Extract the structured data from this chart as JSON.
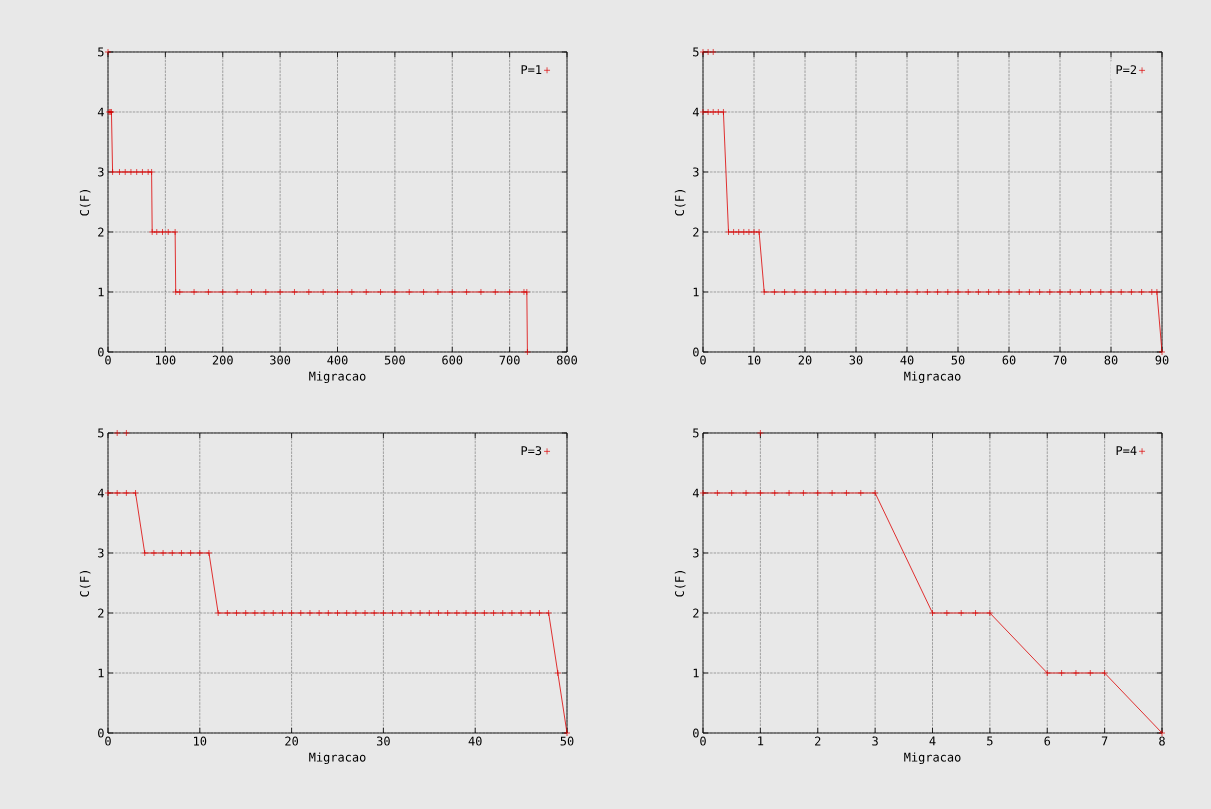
{
  "chart_data": [
    {
      "type": "line",
      "xlabel": "Migracao",
      "ylabel": "C(F)",
      "xlim": [
        0,
        800
      ],
      "ylim": [
        0,
        5
      ],
      "xticks": [
        0,
        100,
        200,
        300,
        400,
        500,
        600,
        700,
        800
      ],
      "yticks": [
        0,
        1,
        2,
        3,
        4,
        5
      ],
      "grid": true,
      "legend": "top right",
      "marker": "cross",
      "line_style": "solid",
      "series": [
        {
          "type": "scatter",
          "color": "#dd0000",
          "x": [
            0
          ],
          "values": [
            5
          ]
        },
        {
          "name": "P=1",
          "color": "#dd0000",
          "x": [
            2,
            4,
            6,
            8,
            20,
            30,
            40,
            50,
            60,
            70,
            76,
            77,
            85,
            95,
            105,
            117,
            118,
            125,
            150,
            175,
            200,
            225,
            250,
            275,
            300,
            325,
            350,
            375,
            400,
            425,
            450,
            475,
            500,
            525,
            550,
            575,
            600,
            625,
            650,
            675,
            700,
            725,
            730,
            731
          ],
          "values": [
            4,
            4,
            4,
            3,
            3,
            3,
            3,
            3,
            3,
            3,
            3,
            2,
            2,
            2,
            2,
            2,
            1,
            1,
            1,
            1,
            1,
            1,
            1,
            1,
            1,
            1,
            1,
            1,
            1,
            1,
            1,
            1,
            1,
            1,
            1,
            1,
            1,
            1,
            1,
            1,
            1,
            1,
            1,
            0
          ]
        }
      ]
    },
    {
      "type": "line",
      "xlabel": "Migracao",
      "ylabel": "C(F)",
      "xlim": [
        0,
        90
      ],
      "ylim": [
        0,
        5
      ],
      "xticks": [
        0,
        10,
        20,
        30,
        40,
        50,
        60,
        70,
        80,
        90
      ],
      "yticks": [
        0,
        1,
        2,
        3,
        4,
        5
      ],
      "grid": true,
      "legend": "top right",
      "marker": "cross",
      "line_style": "solid",
      "series": [
        {
          "type": "scatter",
          "color": "#dd0000",
          "x": [
            0,
            1,
            2
          ],
          "values": [
            5,
            5,
            5
          ]
        },
        {
          "name": "P=2",
          "color": "#dd0000",
          "x": [
            0,
            1,
            2,
            3,
            4,
            5,
            6,
            7,
            8,
            9,
            10,
            11,
            12,
            14,
            16,
            18,
            20,
            22,
            24,
            26,
            28,
            30,
            32,
            34,
            36,
            38,
            40,
            42,
            44,
            46,
            48,
            50,
            52,
            54,
            56,
            58,
            60,
            62,
            64,
            66,
            68,
            70,
            72,
            74,
            76,
            78,
            80,
            82,
            84,
            86,
            88,
            89,
            90
          ],
          "values": [
            4,
            4,
            4,
            4,
            4,
            2,
            2,
            2,
            2,
            2,
            2,
            2,
            1,
            1,
            1,
            1,
            1,
            1,
            1,
            1,
            1,
            1,
            1,
            1,
            1,
            1,
            1,
            1,
            1,
            1,
            1,
            1,
            1,
            1,
            1,
            1,
            1,
            1,
            1,
            1,
            1,
            1,
            1,
            1,
            1,
            1,
            1,
            1,
            1,
            1,
            1,
            1,
            0
          ]
        }
      ]
    },
    {
      "type": "line",
      "xlabel": "Migracao",
      "ylabel": "C(F)",
      "xlim": [
        0,
        50
      ],
      "ylim": [
        0,
        5
      ],
      "xticks": [
        0,
        10,
        20,
        30,
        40,
        50
      ],
      "yticks": [
        0,
        1,
        2,
        3,
        4,
        5
      ],
      "grid": true,
      "legend": "top right",
      "marker": "cross",
      "line_style": "solid",
      "series": [
        {
          "type": "scatter",
          "color": "#dd0000",
          "x": [
            1,
            2
          ],
          "values": [
            5,
            5
          ]
        },
        {
          "name": "P=3",
          "color": "#dd0000",
          "x": [
            0,
            1,
            2,
            3,
            4,
            5,
            6,
            7,
            8,
            9,
            10,
            11,
            12,
            13,
            14,
            15,
            16,
            17,
            18,
            19,
            20,
            21,
            22,
            23,
            24,
            25,
            26,
            27,
            28,
            29,
            30,
            31,
            32,
            33,
            34,
            35,
            36,
            37,
            38,
            39,
            40,
            41,
            42,
            43,
            44,
            45,
            46,
            47,
            48,
            49,
            50
          ],
          "values": [
            4,
            4,
            4,
            4,
            3,
            3,
            3,
            3,
            3,
            3,
            3,
            3,
            2,
            2,
            2,
            2,
            2,
            2,
            2,
            2,
            2,
            2,
            2,
            2,
            2,
            2,
            2,
            2,
            2,
            2,
            2,
            2,
            2,
            2,
            2,
            2,
            2,
            2,
            2,
            2,
            2,
            2,
            2,
            2,
            2,
            2,
            2,
            2,
            2,
            1,
            0
          ]
        }
      ]
    },
    {
      "type": "line",
      "xlabel": "Migracao",
      "ylabel": "C(F)",
      "xlim": [
        0,
        8
      ],
      "ylim": [
        0,
        5
      ],
      "xticks": [
        0,
        1,
        2,
        3,
        4,
        5,
        6,
        7,
        8
      ],
      "yticks": [
        0,
        1,
        2,
        3,
        4,
        5
      ],
      "grid": true,
      "legend": "top right",
      "marker": "cross",
      "line_style": "solid",
      "series": [
        {
          "type": "scatter",
          "color": "#dd0000",
          "x": [
            1
          ],
          "values": [
            5
          ]
        },
        {
          "name": "P=4",
          "color": "#dd0000",
          "x": [
            0,
            0.25,
            0.5,
            0.75,
            1,
            1.25,
            1.5,
            1.75,
            2,
            2.25,
            2.5,
            2.75,
            3,
            4,
            4.25,
            4.5,
            4.75,
            5,
            6,
            6.25,
            6.5,
            6.75,
            7,
            8
          ],
          "values": [
            4,
            4,
            4,
            4,
            4,
            4,
            4,
            4,
            4,
            4,
            4,
            4,
            4,
            2,
            2,
            2,
            2,
            2,
            1,
            1,
            1,
            1,
            1,
            0
          ]
        }
      ]
    }
  ]
}
